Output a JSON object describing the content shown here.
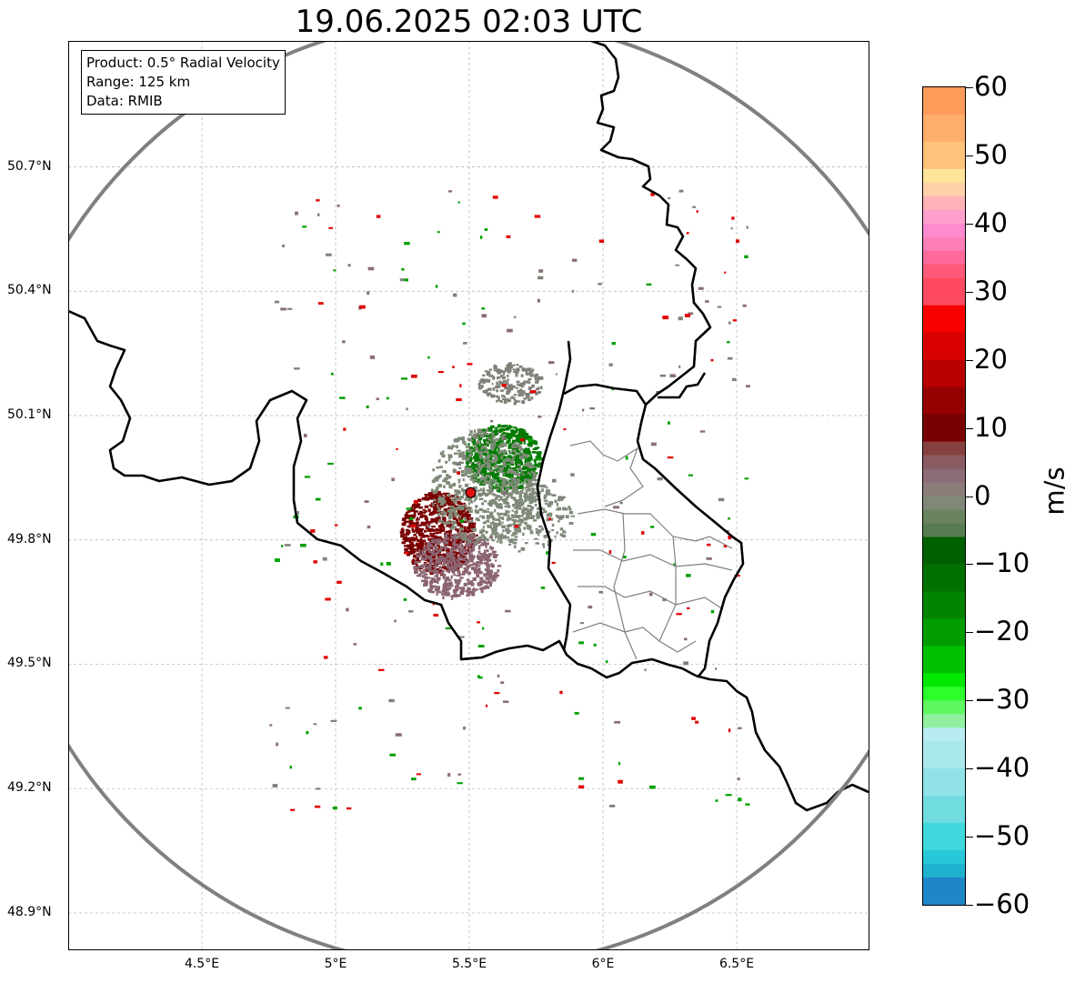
{
  "title": "19.06.2025 02:03 UTC",
  "info": {
    "product": "Product: 0.5° Radial Velocity",
    "range": "Range: 125 km",
    "source": "Data: RMIB"
  },
  "axes": {
    "lat_ticks": [
      {
        "value": 50.7,
        "label": "50.7°N"
      },
      {
        "value": 50.4,
        "label": "50.4°N"
      },
      {
        "value": 50.1,
        "label": "50.1°N"
      },
      {
        "value": 49.8,
        "label": "49.8°N"
      },
      {
        "value": 49.5,
        "label": "49.5°N"
      },
      {
        "value": 49.2,
        "label": "49.2°N"
      },
      {
        "value": 48.9,
        "label": "48.9°N"
      }
    ],
    "lon_ticks": [
      {
        "value": 4.5,
        "label": "4.5°E"
      },
      {
        "value": 5.0,
        "label": "5°E"
      },
      {
        "value": 5.5,
        "label": "5.5°E"
      },
      {
        "value": 6.0,
        "label": "6°E"
      },
      {
        "value": 6.5,
        "label": "6.5°E"
      }
    ],
    "lon_range": [
      4.0,
      7.0
    ],
    "lat_range": [
      48.8,
      51.0
    ],
    "grid": true
  },
  "radar": {
    "lon": 5.505,
    "lat": 49.914,
    "range_km": 125,
    "marker_color": "#dd1111",
    "range_ring_color": "#808080"
  },
  "colorbar": {
    "unit": "m/s",
    "min": -60,
    "max": 60,
    "ticks": [
      {
        "value": 60,
        "label": "60"
      },
      {
        "value": 50,
        "label": "50"
      },
      {
        "value": 40,
        "label": "40"
      },
      {
        "value": 30,
        "label": "30"
      },
      {
        "value": 20,
        "label": "20"
      },
      {
        "value": 10,
        "label": "10"
      },
      {
        "value": 0,
        "label": "0"
      },
      {
        "value": -10,
        "label": "−10"
      },
      {
        "value": -20,
        "label": "−20"
      },
      {
        "value": -30,
        "label": "−30"
      },
      {
        "value": -40,
        "label": "−40"
      },
      {
        "value": -50,
        "label": "−50"
      },
      {
        "value": -60,
        "label": "−60"
      }
    ],
    "bands": [
      {
        "from": 56,
        "to": 60,
        "color": "#ff9b5a"
      },
      {
        "from": 52,
        "to": 56,
        "color": "#ffae6b"
      },
      {
        "from": 48,
        "to": 52,
        "color": "#ffc27a"
      },
      {
        "from": 46,
        "to": 48,
        "color": "#ffe59a"
      },
      {
        "from": 44,
        "to": 46,
        "color": "#ffd0a8"
      },
      {
        "from": 42,
        "to": 44,
        "color": "#ffb2b8"
      },
      {
        "from": 40,
        "to": 42,
        "color": "#ff9fcc"
      },
      {
        "from": 38,
        "to": 40,
        "color": "#ff8ad0"
      },
      {
        "from": 36,
        "to": 38,
        "color": "#ff7db9"
      },
      {
        "from": 34,
        "to": 36,
        "color": "#ff6a9a"
      },
      {
        "from": 32,
        "to": 34,
        "color": "#ff5a7a"
      },
      {
        "from": 28,
        "to": 32,
        "color": "#ff4a60"
      },
      {
        "from": 24,
        "to": 28,
        "color": "#f60000"
      },
      {
        "from": 20,
        "to": 24,
        "color": "#d80000"
      },
      {
        "from": 16,
        "to": 20,
        "color": "#b80000"
      },
      {
        "from": 12,
        "to": 16,
        "color": "#950000"
      },
      {
        "from": 8,
        "to": 12,
        "color": "#780000"
      },
      {
        "from": 6,
        "to": 8,
        "color": "#864040"
      },
      {
        "from": 4,
        "to": 6,
        "color": "#8a5a62"
      },
      {
        "from": 2,
        "to": 4,
        "color": "#8c6c76"
      },
      {
        "from": 0,
        "to": 2,
        "color": "#8c7c7a"
      },
      {
        "from": -2,
        "to": 0,
        "color": "#808878"
      },
      {
        "from": -4,
        "to": -2,
        "color": "#6a8460"
      },
      {
        "from": -6,
        "to": -4,
        "color": "#587c52"
      },
      {
        "from": -10,
        "to": -6,
        "color": "#006000"
      },
      {
        "from": -14,
        "to": -10,
        "color": "#007000"
      },
      {
        "from": -18,
        "to": -14,
        "color": "#008400"
      },
      {
        "from": -22,
        "to": -18,
        "color": "#009c00"
      },
      {
        "from": -26,
        "to": -22,
        "color": "#00c000"
      },
      {
        "from": -28,
        "to": -26,
        "color": "#00e800"
      },
      {
        "from": -30,
        "to": -28,
        "color": "#2cff2c"
      },
      {
        "from": -32,
        "to": -30,
        "color": "#60f860"
      },
      {
        "from": -34,
        "to": -32,
        "color": "#90f0a0"
      },
      {
        "from": -36,
        "to": -34,
        "color": "#b8ecf0"
      },
      {
        "from": -40,
        "to": -36,
        "color": "#a8e8ec"
      },
      {
        "from": -44,
        "to": -40,
        "color": "#90e2e6"
      },
      {
        "from": -48,
        "to": -44,
        "color": "#70dce0"
      },
      {
        "from": -52,
        "to": -48,
        "color": "#40d8dc"
      },
      {
        "from": -54,
        "to": -52,
        "color": "#28c8d8"
      },
      {
        "from": -56,
        "to": -54,
        "color": "#20b0d0"
      },
      {
        "from": -60,
        "to": -56,
        "color": "#1f86c8"
      }
    ]
  },
  "echo_clusters": [
    {
      "lon": 5.38,
      "lat": 49.82,
      "rx": 0.14,
      "ry": 0.1,
      "count": 700,
      "color": "#7a0000"
    },
    {
      "lon": 5.45,
      "lat": 49.74,
      "rx": 0.16,
      "ry": 0.08,
      "count": 500,
      "color": "#8a6470"
    },
    {
      "lon": 5.62,
      "lat": 50.0,
      "rx": 0.14,
      "ry": 0.08,
      "count": 700,
      "color": "#007a00"
    },
    {
      "lon": 5.55,
      "lat": 49.93,
      "rx": 0.2,
      "ry": 0.14,
      "count": 600,
      "color": "#808a78"
    },
    {
      "lon": 5.72,
      "lat": 49.86,
      "rx": 0.16,
      "ry": 0.08,
      "count": 250,
      "color": "#7e8a7a"
    },
    {
      "lon": 5.65,
      "lat": 50.18,
      "rx": 0.12,
      "ry": 0.05,
      "count": 180,
      "color": "#808078"
    }
  ]
}
